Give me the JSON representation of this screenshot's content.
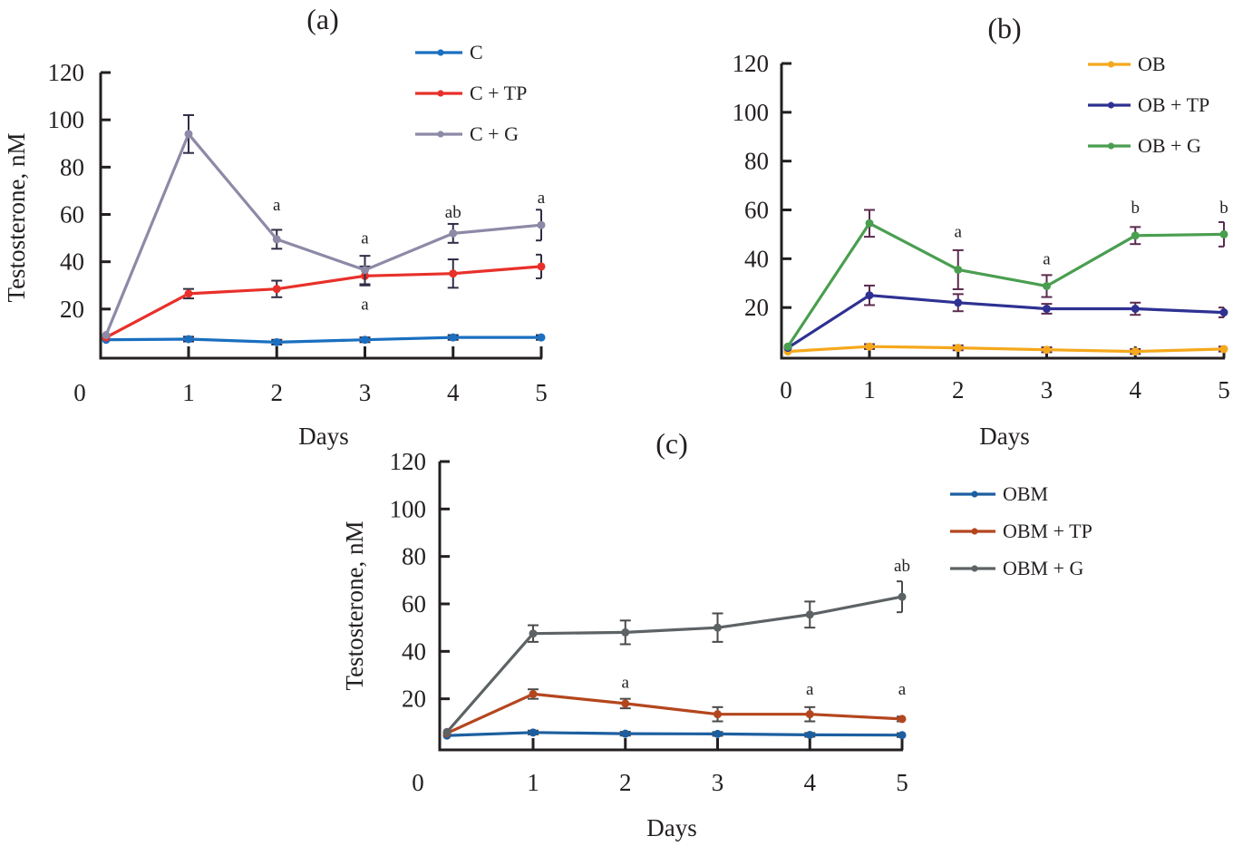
{
  "chart_data": [
    {
      "type": "line",
      "panel": "(a)",
      "title": "(a)",
      "xlabel": "Days",
      "ylabel": "Testosterone, nM",
      "x": [
        0,
        1,
        2,
        3,
        4,
        5
      ],
      "x_tick_labels": [
        "0",
        "1",
        "2",
        "3",
        "4",
        "5"
      ],
      "y_tick_labels": [
        "20",
        "40",
        "60",
        "80",
        "100",
        "120"
      ],
      "ylim": [
        0,
        120
      ],
      "grid": false,
      "legend_position": "top-right",
      "series": [
        {
          "name": "C",
          "color": "#1a6fc0",
          "values": [
            7,
            7.3,
            6,
            7,
            8,
            8
          ],
          "errors": [
            1,
            1,
            1,
            1,
            1,
            1
          ]
        },
        {
          "name": "C + TP",
          "color": "#e8302a",
          "values": [
            8,
            26.5,
            28.5,
            34,
            35,
            38
          ],
          "errors": [
            1,
            2,
            3.5,
            4,
            6,
            5
          ]
        },
        {
          "name": "C + G",
          "color": "#8c8aa6",
          "values": [
            9,
            94,
            49.5,
            36.5,
            52,
            55.5
          ],
          "errors": [
            1,
            8,
            4,
            6,
            4,
            6.5
          ]
        }
      ],
      "annotations": [
        {
          "x": 2,
          "text": "a",
          "value": 64
        },
        {
          "x": 3,
          "text": "a",
          "value": 50
        },
        {
          "x": 3,
          "text": "a",
          "value": 22
        },
        {
          "x": 4,
          "text": "ab",
          "value": 61
        },
        {
          "x": 5,
          "text": "a",
          "value": 67
        }
      ]
    },
    {
      "type": "line",
      "panel": "(b)",
      "title": "(b)",
      "xlabel": "Days",
      "ylabel": "",
      "x": [
        0,
        1,
        2,
        3,
        4,
        5
      ],
      "x_tick_labels": [
        "0",
        "1",
        "2",
        "3",
        "4",
        "5"
      ],
      "y_tick_labels": [
        "20",
        "40",
        "60",
        "80",
        "100",
        "120"
      ],
      "ylim": [
        0,
        120
      ],
      "grid": false,
      "legend_position": "top-right",
      "series": [
        {
          "name": "OB",
          "color": "#f5a81c",
          "values": [
            2,
            4,
            3.5,
            2.7,
            2,
            3
          ],
          "errors": [
            0.5,
            1,
            1,
            1,
            1,
            1
          ]
        },
        {
          "name": "OB + TP",
          "color": "#2e3192",
          "values": [
            3.5,
            25,
            22,
            19.5,
            19.5,
            18
          ],
          "errors": [
            0.5,
            4,
            3.5,
            2,
            2.5,
            2
          ]
        },
        {
          "name": "OB + G",
          "color": "#4a9e50",
          "values": [
            4,
            54.5,
            35.5,
            28.8,
            49.5,
            50
          ],
          "errors": [
            0.5,
            5.5,
            8,
            4.5,
            3.5,
            5
          ]
        }
      ],
      "annotations": [
        {
          "x": 2,
          "text": "a",
          "value": 51
        },
        {
          "x": 3,
          "text": "a",
          "value": 40
        },
        {
          "x": 4,
          "text": "b",
          "value": 61
        },
        {
          "x": 5,
          "text": "b",
          "value": 61
        }
      ]
    },
    {
      "type": "line",
      "panel": "(c)",
      "title": "(c)",
      "xlabel": "Days",
      "ylabel": "Testosterone, nM",
      "x": [
        0,
        1,
        2,
        3,
        4,
        5
      ],
      "x_tick_labels": [
        "0",
        "1",
        "2",
        "3",
        "4",
        "5"
      ],
      "y_tick_labels": [
        "20",
        "40",
        "60",
        "80",
        "100",
        "120"
      ],
      "ylim": [
        0,
        120
      ],
      "grid": false,
      "legend_position": "right",
      "series": [
        {
          "name": "OBM",
          "color": "#1c5fa0",
          "values": [
            4.5,
            5.8,
            5.3,
            5.2,
            4.8,
            4.7
          ],
          "errors": [
            0.5,
            0.8,
            0.8,
            0.8,
            0.8,
            0.8
          ]
        },
        {
          "name": "OBM + TP",
          "color": "#b4461e",
          "values": [
            5.5,
            22,
            18,
            13.5,
            13.5,
            11.5
          ],
          "errors": [
            0.5,
            2,
            2,
            3,
            3,
            1
          ]
        },
        {
          "name": "OBM + G",
          "color": "#5d6365",
          "values": [
            6,
            47.5,
            48,
            50,
            55.5,
            63
          ],
          "errors": [
            0.5,
            3.5,
            5,
            6,
            5.5,
            6.5
          ]
        }
      ],
      "annotations": [
        {
          "x": 2,
          "text": "a",
          "value": 27
        },
        {
          "x": 4,
          "text": "a",
          "value": 24
        },
        {
          "x": 5,
          "text": "a",
          "value": 24
        },
        {
          "x": 5,
          "text": "ab",
          "value": 76
        }
      ]
    }
  ]
}
